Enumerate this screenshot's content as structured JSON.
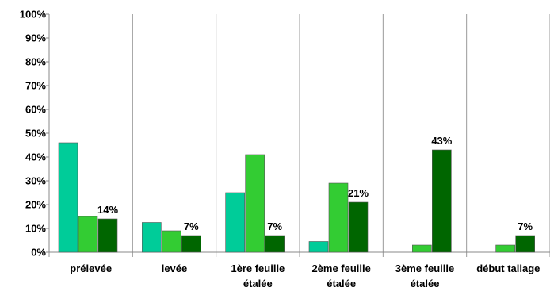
{
  "chart_data": {
    "type": "bar",
    "title": "",
    "xlabel": "",
    "ylabel": "",
    "ylim": [
      0,
      100
    ],
    "y_ticks": [
      "0%",
      "10%",
      "20%",
      "30%",
      "40%",
      "50%",
      "60%",
      "70%",
      "80%",
      "90%",
      "100%"
    ],
    "y_tick_values": [
      0,
      10,
      20,
      30,
      40,
      50,
      60,
      70,
      80,
      90,
      100
    ],
    "grid": "vertical separators between categories",
    "legend": "none",
    "categories": [
      [
        "prélevée"
      ],
      [
        "levée"
      ],
      [
        "1ère feuille",
        "étalée"
      ],
      [
        "2ème feuille",
        "étalée"
      ],
      [
        "3ème feuille",
        "étalée"
      ],
      [
        "début tallage"
      ]
    ],
    "series": [
      {
        "color": "#00CC99",
        "values": [
          46,
          12.5,
          25,
          4.5,
          0,
          0
        ]
      },
      {
        "color": "#33CC33",
        "values": [
          15,
          9,
          41,
          29,
          3,
          3
        ]
      },
      {
        "color": "#006600",
        "values": [
          14,
          7,
          7,
          21,
          43,
          7
        ]
      }
    ],
    "data_labels": [
      "14%",
      "7%",
      "7%",
      "21%",
      "43%",
      "7%"
    ]
  }
}
